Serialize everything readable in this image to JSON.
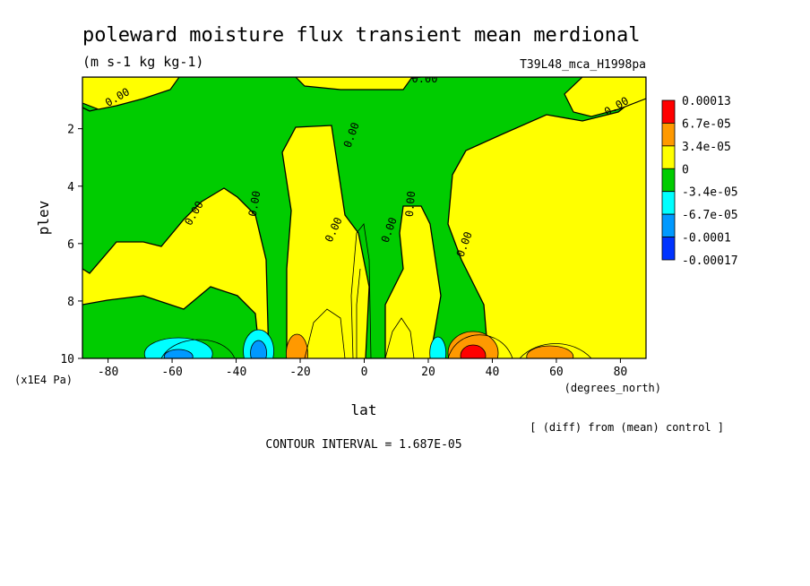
{
  "chart_data": {
    "type": "heatmap",
    "title": "poleward moisture flux transient mean merdional",
    "subtitle": "(m s-1 kg kg-1)",
    "run_label": "T39L48_mca_H1998pa",
    "xlabel": "lat",
    "x_units": "(degrees_north)",
    "ylabel": "plev",
    "y_units": "(x1E4 Pa)",
    "xlim": [
      -88,
      88
    ],
    "ylim": [
      10,
      0.2
    ],
    "x_ticks": [
      -80,
      -60,
      -40,
      -20,
      0,
      20,
      40,
      60,
      80
    ],
    "y_ticks": [
      2,
      4,
      6,
      8,
      10
    ],
    "contour_interval_text": "CONTOUR INTERVAL = 1.687E-05",
    "diff_note": "[ (diff) from (mean) control ]",
    "contour_labels": [
      "0.00",
      "0.00",
      "0.00",
      "0.00",
      "0.00",
      "0.00",
      "0.00",
      "0.00",
      "0.00",
      "0.00"
    ],
    "colorbar": {
      "labels": [
        "0.00013",
        "6.7e-05",
        "3.4e-05",
        "0",
        "-3.4e-05",
        "-6.7e-05",
        "-0.0001",
        "-0.00017"
      ],
      "colors": [
        "#ff0000",
        "#ff9900",
        "#ffff00",
        "#00cc00",
        "#00ffff",
        "#0099ff",
        "#0033ff"
      ]
    },
    "levels_colors": {
      "green": "#00cc00",
      "yellow": "#ffff00",
      "orange": "#ff9900",
      "red": "#ff0000",
      "cyan": "#00ffff",
      "blue": "#0099ff"
    }
  }
}
